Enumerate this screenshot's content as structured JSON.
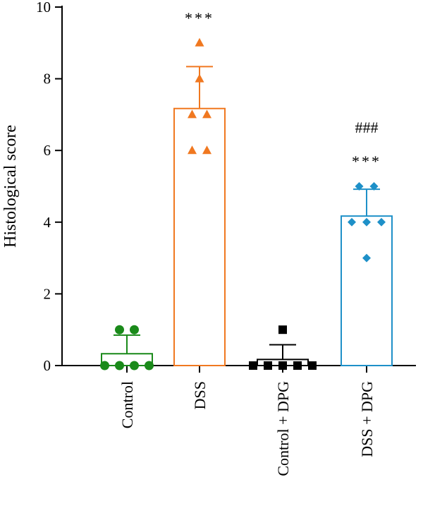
{
  "chart_data": {
    "type": "bar",
    "title": "",
    "xlabel": "",
    "ylabel": "Histological score",
    "ylim": [
      0,
      10
    ],
    "yticks": [
      0,
      2,
      4,
      6,
      8,
      10
    ],
    "grid": false,
    "legend": "none",
    "categories": [
      "Control",
      "DSS",
      "Control + DPG",
      "DSS + DPG"
    ],
    "series": [
      {
        "mean": 0.33,
        "sd": 0.52,
        "color": "#1a8a1a",
        "marker": "circle",
        "points": [
          0,
          0,
          0,
          0,
          1,
          1
        ],
        "significance": []
      },
      {
        "mean": 7.17,
        "sd": 1.17,
        "color": "#f07820",
        "marker": "triangle",
        "points": [
          6,
          6,
          7,
          7,
          8,
          9
        ],
        "significance": [
          "***"
        ]
      },
      {
        "mean": 0.17,
        "sd": 0.41,
        "color": "#000000",
        "marker": "square",
        "points": [
          0,
          0,
          0,
          0,
          0,
          1
        ],
        "significance": []
      },
      {
        "mean": 4.17,
        "sd": 0.75,
        "color": "#1e90c8",
        "marker": "diamond",
        "points": [
          3,
          4,
          4,
          4,
          5,
          5
        ],
        "significance": [
          "***",
          "###"
        ]
      }
    ]
  }
}
